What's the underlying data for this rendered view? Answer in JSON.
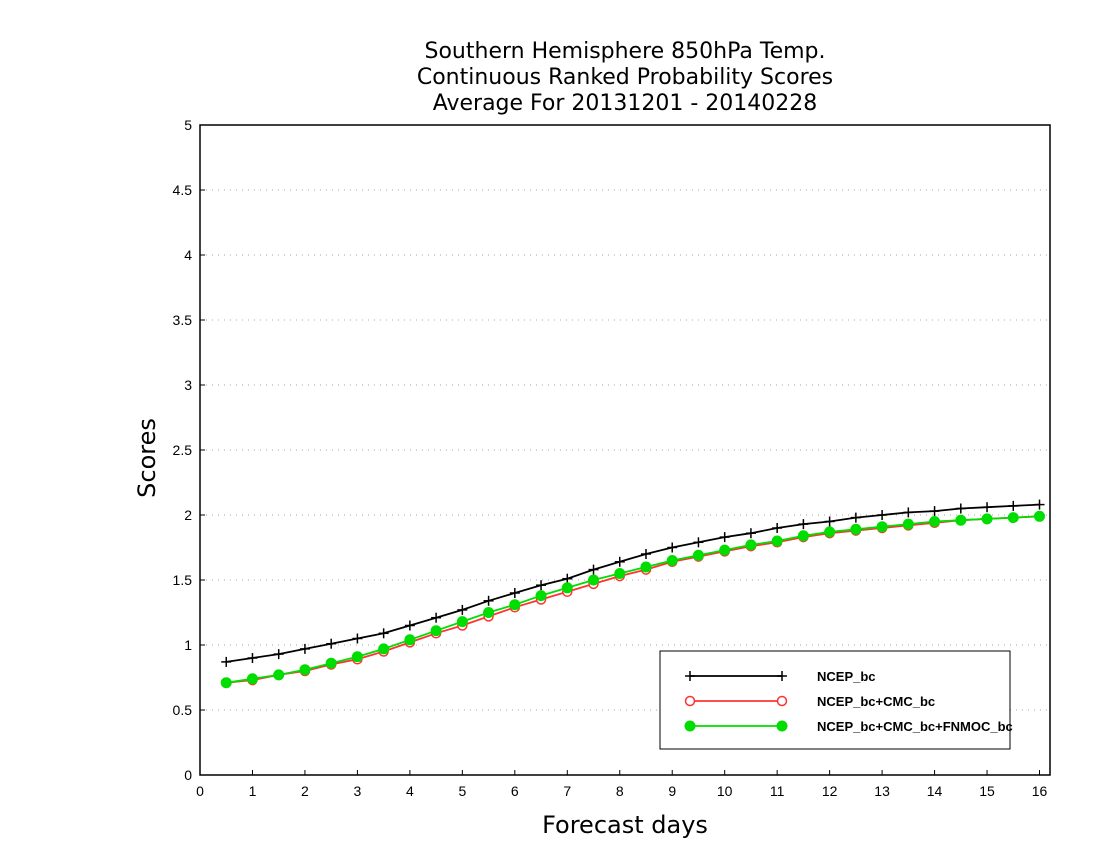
{
  "chart_data": {
    "type": "line",
    "title_lines": [
      "Southern Hemisphere 850hPa Temp.",
      "Continuous Ranked Probability Scores",
      "Average For 20131201 - 20140228"
    ],
    "xlabel": "Forecast days",
    "ylabel": "Scores",
    "xlim": [
      0,
      16.2
    ],
    "ylim": [
      0,
      5
    ],
    "xticks": [
      0,
      1,
      2,
      3,
      4,
      5,
      6,
      7,
      8,
      9,
      10,
      11,
      12,
      13,
      14,
      15,
      16
    ],
    "yticks": [
      0,
      0.5,
      1,
      1.5,
      2,
      2.5,
      3,
      3.5,
      4,
      4.5,
      5
    ],
    "xtick_labels": [
      "0",
      "1",
      "2",
      "3",
      "4",
      "5",
      "6",
      "7",
      "8",
      "9",
      "10",
      "11",
      "12",
      "13",
      "14",
      "15",
      "16"
    ],
    "ytick_labels": [
      "0",
      "0.5",
      "1",
      "1.5",
      "2",
      "2.5",
      "3",
      "3.5",
      "4",
      "4.5",
      "5"
    ],
    "grid": "horizontal dotted",
    "legend_position": "bottom-right",
    "x": [
      0.5,
      1,
      1.5,
      2,
      2.5,
      3,
      3.5,
      4,
      4.5,
      5,
      5.5,
      6,
      6.5,
      7,
      7.5,
      8,
      8.5,
      9,
      9.5,
      10,
      10.5,
      11,
      11.5,
      12,
      12.5,
      13,
      13.5,
      14,
      14.5,
      15,
      15.5,
      16
    ],
    "series": [
      {
        "name": "NCEP_bc",
        "color": "#000000",
        "marker": "plus",
        "values": [
          0.87,
          0.9,
          0.93,
          0.97,
          1.01,
          1.05,
          1.09,
          1.15,
          1.21,
          1.27,
          1.34,
          1.4,
          1.46,
          1.51,
          1.58,
          1.64,
          1.7,
          1.75,
          1.79,
          1.83,
          1.86,
          1.9,
          1.93,
          1.95,
          1.98,
          2.0,
          2.02,
          2.03,
          2.05,
          2.06,
          2.07,
          2.08
        ]
      },
      {
        "name": "NCEP_bc+CMC_bc",
        "color": "#ff3333",
        "marker": "open-circle",
        "values": [
          0.71,
          0.73,
          0.77,
          0.8,
          0.85,
          0.89,
          0.95,
          1.02,
          1.09,
          1.15,
          1.22,
          1.29,
          1.35,
          1.41,
          1.47,
          1.53,
          1.58,
          1.64,
          1.68,
          1.72,
          1.76,
          1.79,
          1.83,
          1.86,
          1.88,
          1.9,
          1.92,
          1.94,
          1.96,
          1.97,
          1.98,
          1.99
        ]
      },
      {
        "name": "NCEP_bc+CMC_bc+FNMOC_bc",
        "color": "#00dd00",
        "marker": "filled-circle",
        "values": [
          0.71,
          0.74,
          0.77,
          0.81,
          0.86,
          0.91,
          0.97,
          1.04,
          1.11,
          1.18,
          1.25,
          1.31,
          1.38,
          1.44,
          1.5,
          1.55,
          1.6,
          1.65,
          1.69,
          1.73,
          1.77,
          1.8,
          1.84,
          1.87,
          1.89,
          1.91,
          1.93,
          1.95,
          1.96,
          1.97,
          1.98,
          1.99
        ]
      }
    ]
  }
}
